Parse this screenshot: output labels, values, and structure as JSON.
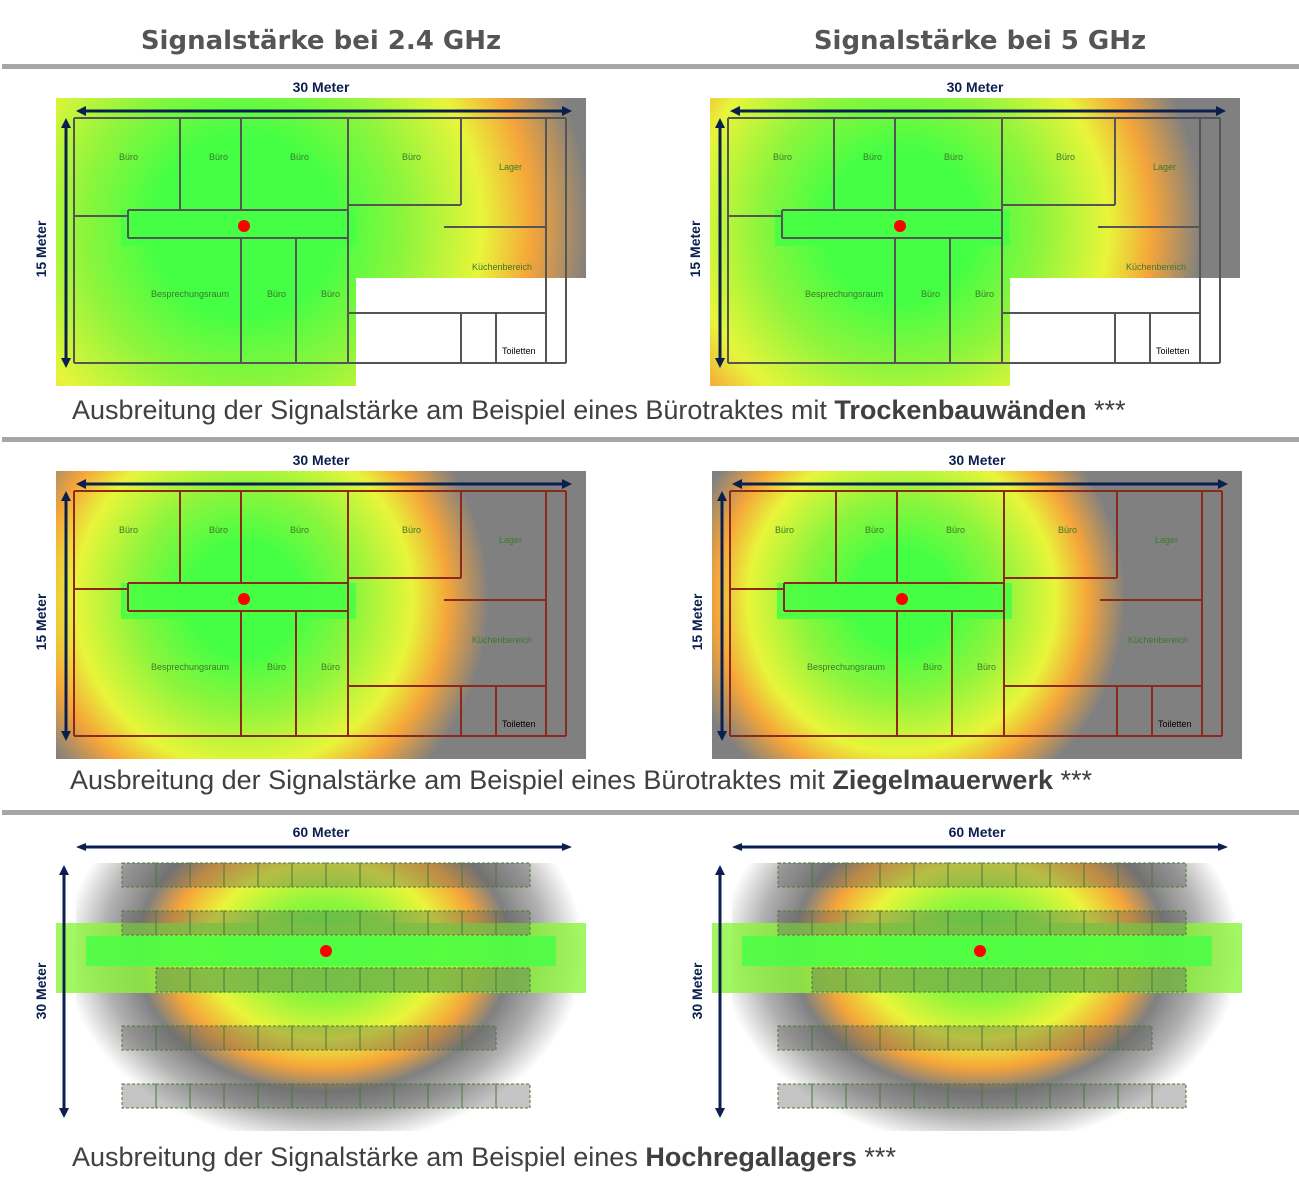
{
  "headers": {
    "left": "Signalstärke bei 2.4 GHz",
    "right": "Signalstärke bei 5 GHz"
  },
  "rows": [
    {
      "caption_prefix": "Ausbreitung der Signalstärke am Beispiel eines Bürotraktes mit ",
      "caption_bold": "Trockenbauwänden",
      "caption_suffix": " ***",
      "width_label": "30 Meter",
      "height_label": "15 Meter"
    },
    {
      "caption_prefix": "Ausbreitung der Signalstärke am Beispiel eines Bürotraktes mit ",
      "caption_bold": "Ziegelmauerwerk",
      "caption_suffix": " ***",
      "width_label": "30 Meter",
      "height_label": "15 Meter"
    },
    {
      "caption_prefix": "Ausbreitung der Signalstärke am Beispiel eines ",
      "caption_bold": "Hochregallagers",
      "caption_suffix": " ***",
      "width_label": "60 Meter",
      "height_label": "30 Meter"
    }
  ],
  "rooms": [
    "Büro",
    "Büro",
    "Büro",
    "Büro",
    "Lager",
    "Besprechungsraum",
    "Büro",
    "Büro",
    "Küchenbereich",
    "Toiletten"
  ],
  "colors": {
    "strong": "#44ff44",
    "good": "#8cf53c",
    "medium": "#e8f53a",
    "weak": "#f5a53a",
    "none": "#808080",
    "router": "#ff0000",
    "arrow": "#0b1f4f"
  }
}
